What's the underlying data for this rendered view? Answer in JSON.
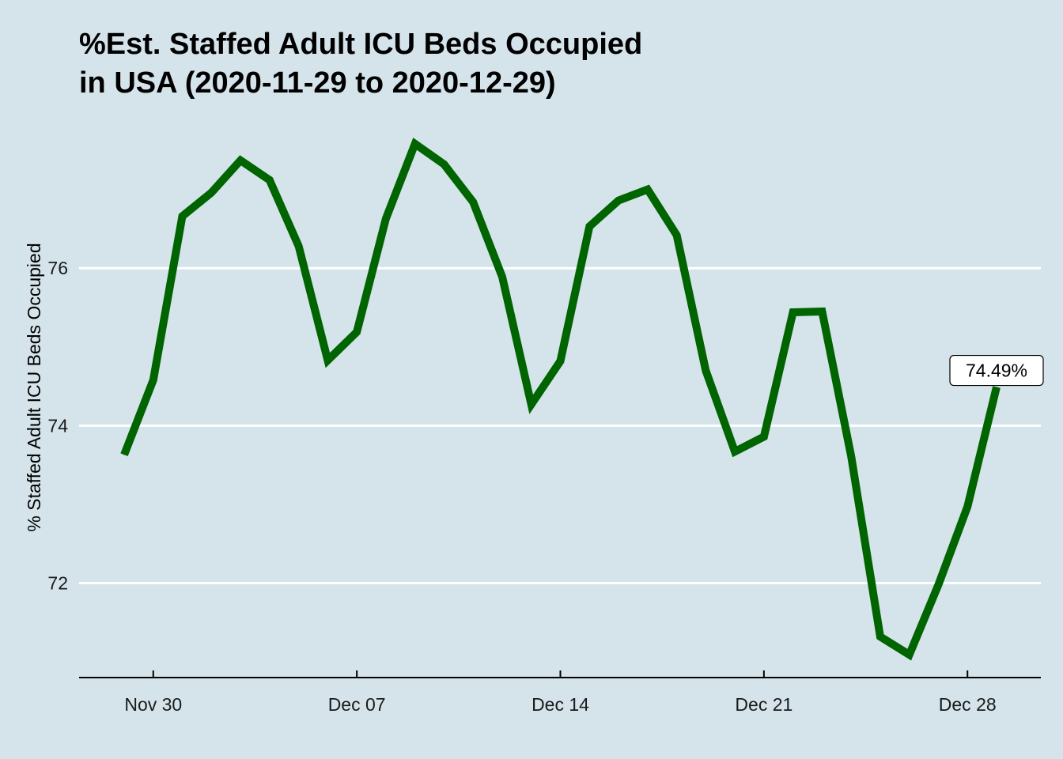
{
  "chart_data": {
    "type": "line",
    "title_lines": [
      "%Est. Staffed Adult ICU Beds Occupied",
      "in USA (2020-11-29 to 2020-12-29)"
    ],
    "ylabel": "% Staffed Adult ICU Beds Occupied",
    "xlabel": "",
    "x_start": "2020-11-29",
    "x": [
      "2020-11-29",
      "2020-11-30",
      "2020-12-01",
      "2020-12-02",
      "2020-12-03",
      "2020-12-04",
      "2020-12-05",
      "2020-12-06",
      "2020-12-07",
      "2020-12-08",
      "2020-12-09",
      "2020-12-10",
      "2020-12-11",
      "2020-12-12",
      "2020-12-13",
      "2020-12-14",
      "2020-12-15",
      "2020-12-16",
      "2020-12-17",
      "2020-12-18",
      "2020-12-19",
      "2020-12-20",
      "2020-12-21",
      "2020-12-22",
      "2020-12-23",
      "2020-12-24",
      "2020-12-25",
      "2020-12-26",
      "2020-12-27",
      "2020-12-28",
      "2020-12-29"
    ],
    "series": [
      {
        "values": [
          73.63,
          74.58,
          76.66,
          76.96,
          77.37,
          77.12,
          76.28,
          74.83,
          75.19,
          76.63,
          77.58,
          77.32,
          76.84,
          75.89,
          74.27,
          74.82,
          76.53,
          76.86,
          77.0,
          76.42,
          74.7,
          73.67,
          73.86,
          75.44,
          75.45,
          73.61,
          71.32,
          71.09,
          71.98,
          72.97,
          74.49
        ]
      }
    ],
    "x_ticks": [
      {
        "date": "2020-11-30",
        "label": "Nov 30"
      },
      {
        "date": "2020-12-07",
        "label": "Dec 07"
      },
      {
        "date": "2020-12-14",
        "label": "Dec 14"
      },
      {
        "date": "2020-12-21",
        "label": "Dec 21"
      },
      {
        "date": "2020-12-28",
        "label": "Dec 28"
      }
    ],
    "y_ticks": [
      72,
      74,
      76
    ],
    "ylim": [
      70.8,
      77.9
    ],
    "grid": "horizontal-major",
    "last_value_label": "74.49%",
    "colors": {
      "background": "#d5e4eb",
      "line": "#006400",
      "grid": "#ffffff",
      "axis": "#000000"
    }
  }
}
